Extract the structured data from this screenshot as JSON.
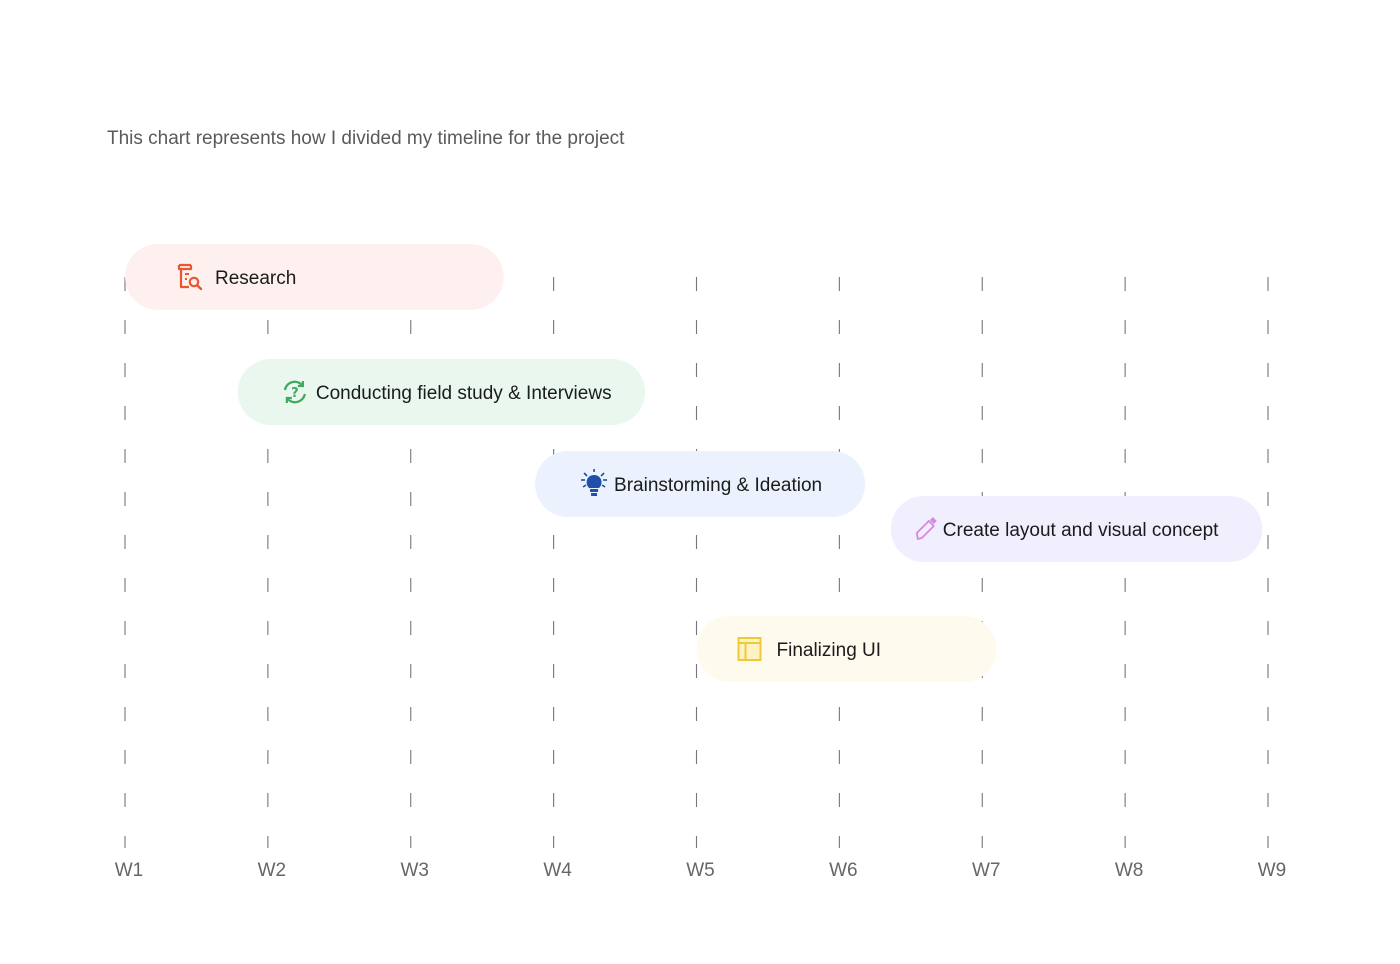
{
  "header": {
    "caption": "This chart represents how I divided my timeline for the project"
  },
  "chart_data": {
    "type": "gantt",
    "x_categories": [
      "W1",
      "W2",
      "W3",
      "W4",
      "W5",
      "W6",
      "W7",
      "W8",
      "W9"
    ],
    "tasks": [
      {
        "label": "Research",
        "start": 1.0,
        "end": 3.65,
        "icon": "research-document-search-icon",
        "bg": "#fdf0ee",
        "icon_color": "#e8572f"
      },
      {
        "label": "Conducting field study & Interviews",
        "start": 1.79,
        "end": 4.64,
        "icon": "refresh-question-icon",
        "bg": "#e9f7ef",
        "icon_color": "#3daa5c"
      },
      {
        "label": "Brainstorming & Ideation",
        "start": 3.87,
        "end": 6.18,
        "icon": "lightbulb-icon",
        "bg": "#ebf2fd",
        "icon_color": "#1f4fa8"
      },
      {
        "label": "Create layout and visual concept",
        "start": 6.36,
        "end": 8.96,
        "icon": "pen-icon",
        "bg": "#f1eefd",
        "icon_color": "#d58ae0"
      },
      {
        "label": "Finalizing UI",
        "start": 5.0,
        "end": 7.1,
        "icon": "layout-panel-icon",
        "bg": "#fefbee",
        "icon_color": "#efc93a"
      }
    ],
    "grid": "dashed-vertical",
    "colors": {
      "grid": "#777777",
      "tick_label": "#666666",
      "bar_text": "#1b1b1b"
    }
  }
}
